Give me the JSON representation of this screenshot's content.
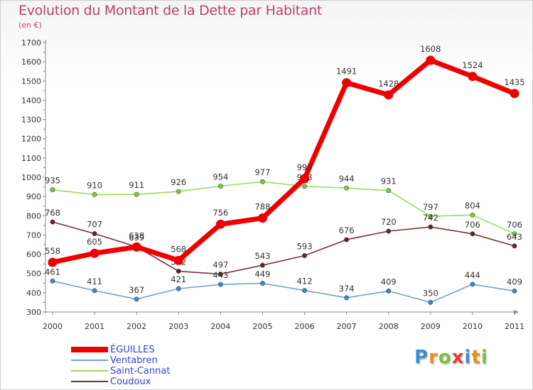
{
  "chart_data": {
    "type": "line",
    "title": "Evolution du Montant de la Dette par Habitant",
    "subtitle": "(en €)",
    "x": [
      "2000",
      "2001",
      "2002",
      "2003",
      "2004",
      "2005",
      "2006",
      "2007",
      "2008",
      "2009",
      "2010",
      "2011"
    ],
    "ylim": [
      300,
      1700
    ],
    "yticks": [
      "300",
      "400",
      "500",
      "600",
      "700",
      "800",
      "900",
      "1000",
      "1100",
      "1200",
      "1300",
      "1400",
      "1500",
      "1600",
      "1700"
    ],
    "grid": false,
    "legend_position": "bottom-left",
    "series": [
      {
        "name": "Saint-Cannat",
        "color": "#99dd55",
        "marker": "#77cc33",
        "values": [
          935,
          910,
          911,
          926,
          954,
          977,
          953,
          944,
          931,
          797,
          804,
          706
        ],
        "labels": [
          "935",
          "910",
          "911",
          "926",
          "954",
          "977",
          "953",
          "944",
          "931",
          "797",
          "804",
          "706"
        ]
      },
      {
        "name": "Coudoux",
        "color": "#7a2f34",
        "marker": "#6a1f24",
        "values": [
          768,
          707,
          639,
          512,
          497,
          543,
          593,
          676,
          720,
          742,
          706,
          643
        ],
        "labels": [
          "768",
          "707",
          "639",
          "512",
          "497",
          "543",
          "593",
          "676",
          "720",
          "742",
          "706",
          "643"
        ]
      },
      {
        "name": "Ventabren",
        "color": "#6aa3d8",
        "marker": "#3a86cf",
        "values": [
          461,
          411,
          367,
          421,
          443,
          449,
          412,
          374,
          409,
          350,
          444,
          409
        ],
        "labels": [
          "461",
          "411",
          "367",
          "421",
          "443",
          "449",
          "412",
          "374",
          "409",
          "350",
          "444",
          "409"
        ]
      },
      {
        "name": "ÉGUILLES",
        "color": "#ee0000",
        "marker": "#ee0000",
        "values": [
          558,
          605,
          638,
          568,
          756,
          788,
          993,
          1491,
          1428,
          1608,
          1524,
          1435
        ],
        "labels": [
          "558",
          "605",
          "638",
          "568",
          "756",
          "788",
          "993",
          "1491",
          "1428",
          "1608",
          "1524",
          "1435"
        ]
      }
    ]
  },
  "legend": {
    "items": [
      {
        "label": "ÉGUILLES",
        "color": "#ee0000",
        "weight": 8
      },
      {
        "label": "Ventabren",
        "color": "#6aa3d8",
        "weight": 2
      },
      {
        "label": "Saint-Cannat",
        "color": "#99dd55",
        "weight": 2
      },
      {
        "label": "Coudoux",
        "color": "#7a2f34",
        "weight": 2
      }
    ]
  },
  "logo": {
    "letters": [
      {
        "ch": "P",
        "color": "#3a8fd6"
      },
      {
        "ch": "r",
        "color": "#f08c1a"
      },
      {
        "ch": "o",
        "color": "#7cc142"
      },
      {
        "ch": "x",
        "color": "#e83b2a"
      },
      {
        "ch": "i",
        "color": "#3a8fd6"
      },
      {
        "ch": "t",
        "color": "#f08c1a"
      },
      {
        "ch": "i",
        "color": "#7cc142"
      }
    ]
  }
}
